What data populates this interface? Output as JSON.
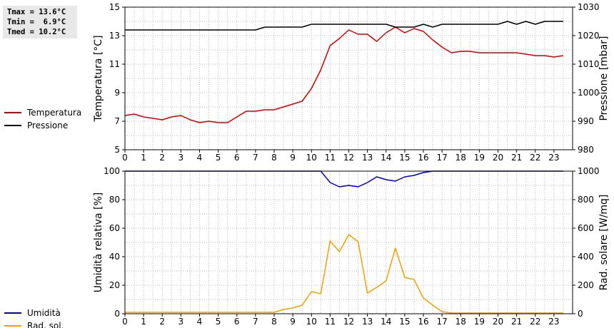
{
  "stats": {
    "tmax": "Tmax = 13.6°C",
    "tmin": "Tmin =  6.9°C",
    "tmed": "Tmed = 10.2°C"
  },
  "chart_data": [
    {
      "type": "line",
      "xlim": [
        0,
        24
      ],
      "xticks": [
        "0",
        "1",
        "2",
        "3",
        "4",
        "5",
        "6",
        "7",
        "8",
        "9",
        "10",
        "11",
        "12",
        "13",
        "14",
        "15",
        "16",
        "17",
        "18",
        "19",
        "20",
        "21",
        "22",
        "23"
      ],
      "y_left": {
        "label": "Temperatura [°C]",
        "ylim": [
          5,
          15
        ],
        "ticks": [
          "5",
          "7",
          "9",
          "11",
          "13",
          "15"
        ]
      },
      "y_right": {
        "label": "Pressione [mbar]",
        "ylim": [
          980,
          1030
        ],
        "ticks": [
          "980",
          "990",
          "1000",
          "1010",
          "1020",
          "1030"
        ]
      },
      "grid": true,
      "legend": "left",
      "series": [
        {
          "name": "Temperatura",
          "axis": "left",
          "color": "#d00000",
          "x": [
            0,
            0.5,
            1,
            1.5,
            2,
            2.5,
            3,
            3.5,
            4,
            4.5,
            5,
            5.5,
            6,
            6.5,
            7,
            7.5,
            8,
            8.5,
            9,
            9.5,
            10,
            10.5,
            11,
            11.5,
            12,
            12.5,
            13,
            13.5,
            14,
            14.5,
            15,
            15.5,
            16,
            16.5,
            17,
            17.5,
            18,
            18.5,
            19,
            19.5,
            20,
            20.5,
            21,
            21.5,
            22,
            22.5,
            23,
            23.5
          ],
          "y": [
            7.4,
            7.5,
            7.3,
            7.2,
            7.1,
            7.3,
            7.4,
            7.1,
            6.9,
            7.0,
            6.9,
            6.9,
            7.3,
            7.7,
            7.7,
            7.8,
            7.8,
            8.0,
            8.2,
            8.4,
            9.3,
            10.6,
            12.3,
            12.8,
            13.4,
            13.1,
            13.1,
            12.6,
            13.2,
            13.6,
            13.2,
            13.5,
            13.3,
            12.7,
            12.2,
            11.8,
            11.9,
            11.9,
            11.8,
            11.8,
            11.8,
            11.8,
            11.8,
            11.7,
            11.6,
            11.6,
            11.5,
            11.6
          ]
        },
        {
          "name": "Pressione",
          "axis": "right",
          "color": "#000000",
          "x": [
            0,
            7,
            7.5,
            9.5,
            10,
            14,
            14.5,
            15.5,
            16,
            16.5,
            17,
            20,
            20.5,
            21,
            21.5,
            22,
            22.5,
            23.5
          ],
          "y": [
            1022,
            1022,
            1023,
            1023,
            1024,
            1024,
            1023,
            1023,
            1024,
            1023,
            1024,
            1024,
            1025,
            1024,
            1025,
            1024,
            1025,
            1025
          ]
        }
      ]
    },
    {
      "type": "line",
      "xlim": [
        0,
        24
      ],
      "xticks": [
        "0",
        "1",
        "2",
        "3",
        "4",
        "5",
        "6",
        "7",
        "8",
        "9",
        "10",
        "11",
        "12",
        "13",
        "14",
        "15",
        "16",
        "17",
        "18",
        "19",
        "20",
        "21",
        "22",
        "23"
      ],
      "y_left": {
        "label": "Umidità relativa [%]",
        "ylim": [
          0,
          100
        ],
        "ticks": [
          "0",
          "20",
          "40",
          "60",
          "80",
          "100"
        ]
      },
      "y_right": {
        "label": "Rad. solare [W/mq]",
        "ylim": [
          0,
          1000
        ],
        "ticks": [
          "0",
          "200",
          "400",
          "600",
          "800",
          "1000"
        ]
      },
      "grid": true,
      "legend": "left",
      "series": [
        {
          "name": "Umidità",
          "axis": "left",
          "color": "#0000c0",
          "x": [
            0,
            10.5,
            11,
            11.5,
            12,
            12.5,
            13,
            13.5,
            14,
            14.5,
            15,
            15.5,
            16,
            16.5,
            23.5
          ],
          "y": [
            100,
            100,
            92,
            89,
            90,
            89,
            92,
            96,
            94,
            93,
            96,
            97,
            99,
            100,
            100
          ]
        },
        {
          "name": "Rad. sol.",
          "axis": "right",
          "color": "#f0a000",
          "x": [
            0,
            8,
            8.5,
            9,
            9.5,
            10,
            10.5,
            11,
            11.5,
            12,
            12.5,
            13,
            13.5,
            14,
            14.5,
            15,
            15.5,
            16,
            16.5,
            17,
            17.5,
            23.5
          ],
          "y": [
            10,
            10,
            30,
            40,
            60,
            155,
            140,
            510,
            435,
            555,
            505,
            145,
            185,
            230,
            460,
            255,
            240,
            110,
            60,
            15,
            5,
            5
          ]
        }
      ]
    }
  ]
}
